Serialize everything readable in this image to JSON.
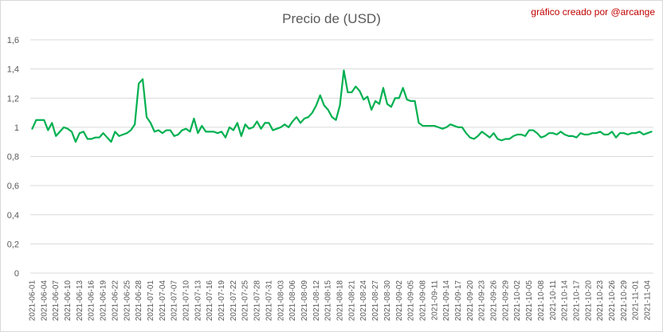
{
  "chart_data": {
    "type": "line",
    "title": "Precio de (USD)",
    "credit": "gráfico creado por @arcange",
    "xlabel": "",
    "ylabel": "",
    "ylim": [
      0,
      1.6
    ],
    "y_ticks": [
      "0",
      "0,2",
      "0,4",
      "0,6",
      "0,8",
      "1",
      "1,2",
      "1,4",
      "1,6"
    ],
    "y_tick_values": [
      0,
      0.2,
      0.4,
      0.6,
      0.8,
      1,
      1.2,
      1.4,
      1.6
    ],
    "grid": true,
    "legend": "none",
    "line_color": "#00b050",
    "x_tick_labels": [
      "2021-06-01",
      "2021-06-04",
      "2021-06-07",
      "2021-06-10",
      "2021-06-13",
      "2021-06-16",
      "2021-06-19",
      "2021-06-22",
      "2021-06-25",
      "2021-06-28",
      "2021-07-01",
      "2021-07-04",
      "2021-07-07",
      "2021-07-10",
      "2021-07-13",
      "2021-07-16",
      "2021-07-19",
      "2021-07-22",
      "2021-07-25",
      "2021-07-28",
      "2021-07-31",
      "2021-08-03",
      "2021-08-06",
      "2021-08-09",
      "2021-08-12",
      "2021-08-15",
      "2021-08-18",
      "2021-08-21",
      "2021-08-24",
      "2021-08-27",
      "2021-08-30",
      "2021-09-02",
      "2021-09-05",
      "2021-09-08",
      "2021-09-11",
      "2021-09-14",
      "2021-09-17",
      "2021-09-20",
      "2021-09-23",
      "2021-09-26",
      "2021-09-29",
      "2021-10-02",
      "2021-10-05",
      "2021-10-08",
      "2021-10-11",
      "2021-10-14",
      "2021-10-17",
      "2021-10-20",
      "2021-10-23",
      "2021-10-26",
      "2021-10-29",
      "2021-11-01",
      "2021-11-04"
    ],
    "series": [
      {
        "start_date": "2021-06-01",
        "values": [
          0.99,
          1.05,
          1.05,
          1.05,
          0.98,
          1.03,
          0.94,
          0.97,
          1.0,
          0.99,
          0.97,
          0.9,
          0.96,
          0.97,
          0.92,
          0.92,
          0.93,
          0.93,
          0.96,
          0.93,
          0.9,
          0.97,
          0.94,
          0.95,
          0.96,
          0.98,
          1.02,
          1.3,
          1.33,
          1.07,
          1.03,
          0.97,
          0.98,
          0.96,
          0.98,
          0.98,
          0.94,
          0.95,
          0.98,
          0.99,
          0.97,
          1.06,
          0.96,
          1.01,
          0.97,
          0.97,
          0.97,
          0.96,
          0.97,
          0.93,
          1.0,
          0.98,
          1.03,
          0.94,
          1.02,
          0.99,
          1.0,
          1.04,
          0.99,
          1.03,
          1.03,
          0.98,
          0.99,
          1.0,
          1.02,
          1.0,
          1.04,
          1.07,
          1.03,
          1.06,
          1.07,
          1.1,
          1.15,
          1.22,
          1.15,
          1.12,
          1.07,
          1.05,
          1.15,
          1.39,
          1.24,
          1.24,
          1.28,
          1.25,
          1.19,
          1.21,
          1.12,
          1.18,
          1.16,
          1.27,
          1.16,
          1.14,
          1.2,
          1.2,
          1.27,
          1.19,
          1.18,
          1.18,
          1.03,
          1.01,
          1.01,
          1.01,
          1.01,
          1.0,
          0.99,
          1.0,
          1.02,
          1.01,
          1.0,
          1.0,
          0.96,
          0.93,
          0.92,
          0.94,
          0.97,
          0.95,
          0.93,
          0.96,
          0.92,
          0.91,
          0.92,
          0.92,
          0.94,
          0.95,
          0.95,
          0.94,
          0.98,
          0.98,
          0.96,
          0.93,
          0.94,
          0.96,
          0.96,
          0.95,
          0.97,
          0.95,
          0.94,
          0.94,
          0.93,
          0.96,
          0.95,
          0.95,
          0.96,
          0.96,
          0.97,
          0.95,
          0.95,
          0.97,
          0.93,
          0.96,
          0.96,
          0.95,
          0.96,
          0.96,
          0.97,
          0.95,
          0.96,
          0.97
        ]
      }
    ]
  }
}
